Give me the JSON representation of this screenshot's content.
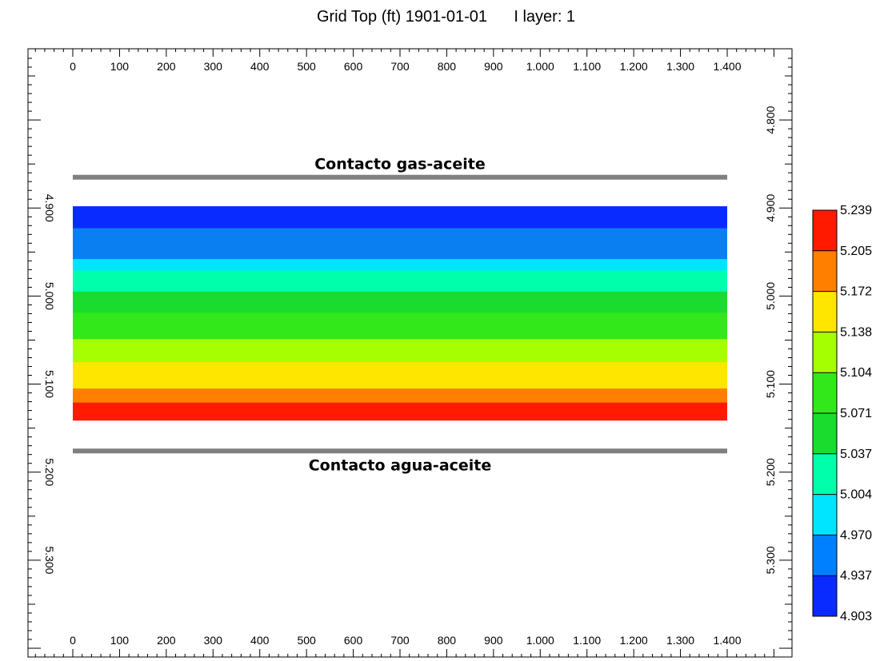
{
  "chart_data": {
    "type": "heatmap",
    "title": "Grid Top (ft) 1901-01-01",
    "layer_label": "I layer: 1",
    "x_axis": {
      "range": [
        0,
        1400
      ],
      "ticks": [
        0,
        100,
        200,
        300,
        400,
        500,
        600,
        700,
        800,
        900,
        1000,
        1100,
        1200,
        1300,
        1400
      ],
      "tick_labels": [
        "0",
        "100",
        "200",
        "300",
        "400",
        "500",
        "600",
        "700",
        "800",
        "900",
        "1.000",
        "1.100",
        "1.200",
        "1.300",
        "1.400"
      ]
    },
    "y_axis": {
      "range": [
        4740,
        5380
      ],
      "inverted": true,
      "ticks": [
        4800,
        4900,
        5000,
        5100,
        5200,
        5300
      ],
      "left_tick_labels": [
        "4.900",
        "5.000",
        "5.100",
        "5.200",
        "5.300"
      ],
      "left_ticks": [
        4900,
        5000,
        5100,
        5200,
        5300
      ],
      "right_tick_labels": [
        "4.800",
        "4.900",
        "5.000",
        "5.100",
        "5.200",
        "5.300"
      ]
    },
    "grid_x_extent": [
      0,
      1400
    ],
    "layers": [
      {
        "top": 4898,
        "bottom": 4923,
        "value": 4.92
      },
      {
        "top": 4923,
        "bottom": 4958,
        "value": 4.953
      },
      {
        "top": 4958,
        "bottom": 4971,
        "value": 4.987
      },
      {
        "top": 4971,
        "bottom": 4995,
        "value": 5.02
      },
      {
        "top": 4995,
        "bottom": 5019,
        "value": 5.054
      },
      {
        "top": 5019,
        "bottom": 5049,
        "value": 5.09
      },
      {
        "top": 5049,
        "bottom": 5075,
        "value": 5.121
      },
      {
        "top": 5075,
        "bottom": 5105,
        "value": 5.155
      },
      {
        "top": 5105,
        "bottom": 5121,
        "value": 5.19
      },
      {
        "top": 5121,
        "bottom": 5141,
        "value": 5.225
      }
    ],
    "contacts": [
      {
        "label": "Contacto gas-aceite",
        "depth": 4865,
        "label_position": "above"
      },
      {
        "label": "Contacto agua-aceite",
        "depth": 5176,
        "label_position": "below"
      }
    ],
    "colorbar": {
      "min": 4.903,
      "max": 5.239,
      "labels": [
        "5.239",
        "5.205",
        "5.172",
        "5.138",
        "5.104",
        "5.071",
        "5.037",
        "5.004",
        "4.970",
        "4.937",
        "4.903"
      ],
      "colors_top_to_bottom": [
        "#ff1a00",
        "#ff7f00",
        "#ffe600",
        "#a5ff00",
        "#33e81a",
        "#1adc2e",
        "#00ffaa",
        "#00e5ff",
        "#0080ff",
        "#0a2bff"
      ]
    },
    "colors": {
      "layer_colors": [
        "#0a2bff",
        "#0a7ff2",
        "#00e5ff",
        "#00ffaa",
        "#1adc2e",
        "#33e81a",
        "#a5ff00",
        "#ffe600",
        "#ff7f00",
        "#ff1a00"
      ],
      "contact_line": "#808080"
    }
  }
}
